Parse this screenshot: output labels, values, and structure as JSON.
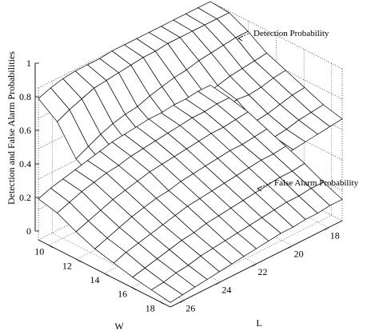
{
  "chart_data": {
    "type": "surface",
    "title": "",
    "zlabel": "Detection and False Alarm Probabilities",
    "xlabel": "L",
    "ylabel": "W",
    "zlim": [
      0,
      1
    ],
    "z_ticks": [
      "0",
      "0.2",
      "0.4",
      "0.6",
      "0.8",
      "1"
    ],
    "x_ticks": [
      "18",
      "20",
      "22",
      "24",
      "26"
    ],
    "y_ticks": [
      "10",
      "12",
      "14",
      "16",
      "18"
    ],
    "grid": true,
    "box": true,
    "series": [
      {
        "name": "Detection Probability",
        "rows": [
          [
            0.93,
            0.96,
            0.98,
            0.99,
            0.99,
            0.99,
            1.0,
            1.0,
            1.0,
            1.0,
            1.0,
            1.0,
            1.0,
            1.0,
            1.0
          ],
          [
            0.84,
            0.88,
            0.91,
            0.94,
            0.95,
            0.96,
            0.97,
            0.98,
            0.98,
            0.99,
            0.99,
            0.99,
            0.99,
            0.99,
            0.99
          ],
          [
            0.66,
            0.7,
            0.74,
            0.77,
            0.79,
            0.8,
            0.83,
            0.85,
            0.87,
            0.88,
            0.9,
            0.91,
            0.92,
            0.93,
            0.93
          ],
          [
            0.58,
            0.62,
            0.65,
            0.67,
            0.7,
            0.72,
            0.73,
            0.74,
            0.76,
            0.78,
            0.8,
            0.82,
            0.83,
            0.84,
            0.85
          ],
          [
            0.55,
            0.58,
            0.6,
            0.62,
            0.63,
            0.65,
            0.66,
            0.68,
            0.7,
            0.74,
            0.77,
            0.76,
            0.77,
            0.79,
            0.8
          ],
          [
            0.49,
            0.52,
            0.54,
            0.56,
            0.58,
            0.6,
            0.62,
            0.64,
            0.66,
            0.67,
            0.69,
            0.7,
            0.72,
            0.74,
            0.75
          ],
          [
            0.2,
            0.28,
            0.4,
            0.52,
            0.56,
            0.58,
            0.6,
            0.62,
            0.63,
            0.64,
            0.65,
            0.66,
            0.68,
            0.69,
            0.7
          ],
          [
            0.08,
            0.14,
            0.28,
            0.46,
            0.52,
            0.55,
            0.58,
            0.6,
            0.61,
            0.62,
            0.63,
            0.64,
            0.65,
            0.66,
            0.67
          ]
        ]
      },
      {
        "name": "False Alarm Probability",
        "rows": [
          [
            0.27,
            0.3,
            0.32,
            0.34,
            0.36,
            0.38,
            0.4,
            0.41,
            0.42,
            0.43,
            0.43,
            0.44,
            0.44,
            0.45,
            0.45
          ],
          [
            0.24,
            0.27,
            0.3,
            0.32,
            0.34,
            0.35,
            0.37,
            0.38,
            0.39,
            0.4,
            0.41,
            0.42,
            0.42,
            0.43,
            0.43
          ],
          [
            0.18,
            0.21,
            0.24,
            0.27,
            0.29,
            0.31,
            0.33,
            0.34,
            0.35,
            0.36,
            0.37,
            0.38,
            0.38,
            0.39,
            0.4
          ],
          [
            0.13,
            0.16,
            0.19,
            0.22,
            0.24,
            0.26,
            0.27,
            0.29,
            0.3,
            0.31,
            0.32,
            0.33,
            0.33,
            0.34,
            0.35
          ],
          [
            0.1,
            0.13,
            0.15,
            0.17,
            0.19,
            0.21,
            0.23,
            0.24,
            0.25,
            0.26,
            0.27,
            0.28,
            0.29,
            0.29,
            0.3
          ],
          [
            0.07,
            0.09,
            0.11,
            0.13,
            0.15,
            0.16,
            0.18,
            0.19,
            0.2,
            0.21,
            0.22,
            0.23,
            0.24,
            0.24,
            0.25
          ],
          [
            0.05,
            0.06,
            0.08,
            0.09,
            0.11,
            0.12,
            0.13,
            0.14,
            0.15,
            0.16,
            0.17,
            0.18,
            0.18,
            0.19,
            0.19
          ],
          [
            0.03,
            0.04,
            0.05,
            0.06,
            0.07,
            0.08,
            0.09,
            0.1,
            0.11,
            0.12,
            0.12,
            0.13,
            0.13,
            0.14,
            0.14
          ]
        ]
      }
    ],
    "annotations": [
      {
        "text": "Detection Probability",
        "series": "Detection Probability"
      },
      {
        "text": "False Alarm Probability",
        "series": "False Alarm Probability"
      }
    ]
  }
}
